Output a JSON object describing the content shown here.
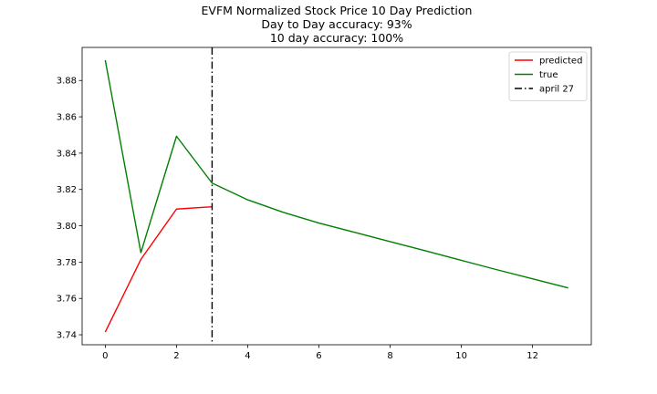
{
  "chart_data": {
    "type": "line",
    "title_lines": [
      "EVFM Normalized Stock Price 10 Day Prediction",
      "Day to Day accuracy: 93%",
      "10 day accuracy: 100%"
    ],
    "xlabel": "",
    "ylabel": "",
    "xlim": [
      -0.65,
      13.65
    ],
    "ylim": [
      3.7345,
      3.8982
    ],
    "x_ticks": [
      0,
      2,
      4,
      6,
      8,
      10,
      12
    ],
    "y_ticks": [
      3.74,
      3.76,
      3.78,
      3.8,
      3.82,
      3.84,
      3.86,
      3.88
    ],
    "y_tick_labels": [
      "3.74",
      "3.76",
      "3.78",
      "3.80",
      "3.82",
      "3.84",
      "3.86",
      "3.88"
    ],
    "grid": false,
    "legend_position": "top-right",
    "series": [
      {
        "name": "predicted",
        "color": "#ff0000",
        "style": "solid",
        "x": [
          0,
          1,
          2,
          3
        ],
        "y": [
          3.7415,
          3.7815,
          3.8092,
          3.8105
        ]
      },
      {
        "name": "true",
        "color": "#008000",
        "style": "solid",
        "x": [
          0,
          1,
          2,
          3,
          4,
          5,
          6,
          7,
          8,
          9,
          10,
          11,
          12,
          13
        ],
        "y": [
          3.8912,
          3.7852,
          3.8493,
          3.8235,
          3.8143,
          3.8074,
          3.8015,
          3.7964,
          3.7913,
          3.7862,
          3.781,
          3.7758,
          3.7708,
          3.7658
        ]
      }
    ],
    "vlines": [
      {
        "name": "april 27",
        "color": "#000000",
        "style": "dashdot",
        "x": 3
      }
    ]
  }
}
